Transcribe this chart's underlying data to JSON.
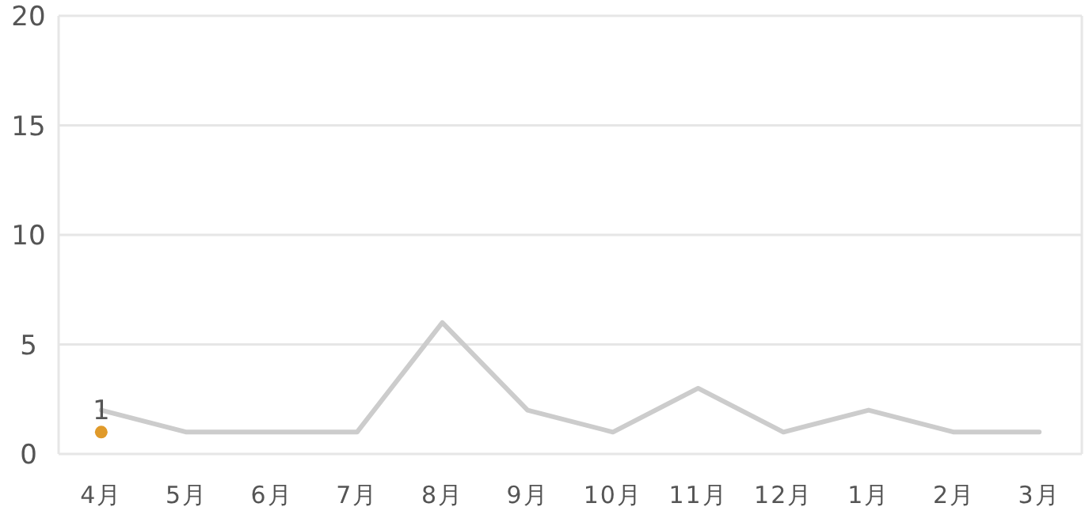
{
  "chart_data": {
    "type": "line",
    "categories": [
      "4月",
      "5月",
      "6月",
      "7月",
      "8月",
      "9月",
      "10月",
      "11月",
      "12月",
      "1月",
      "2月",
      "3月"
    ],
    "series": [
      {
        "color": "#cccccc",
        "values": [
          2,
          1,
          1,
          1,
          6,
          2,
          1,
          3,
          1,
          2,
          1,
          1
        ]
      },
      {
        "type": "scatter",
        "color": "#e09a2a",
        "x": [
          "4月"
        ],
        "values": [
          1
        ],
        "value_labels": [
          "1"
        ],
        "marker": "circle"
      }
    ],
    "ylim": [
      0,
      20
    ],
    "yticks": [
      0,
      5,
      10,
      15,
      20
    ],
    "grid": "y"
  }
}
